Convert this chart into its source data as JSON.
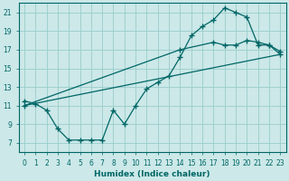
{
  "xlabel": "Humidex (Indice chaleur)",
  "bg_color": "#cce8e8",
  "grid_color": "#99cccc",
  "line_color": "#006666",
  "xlim": [
    -0.5,
    23.5
  ],
  "ylim": [
    6.0,
    22.0
  ],
  "yticks": [
    7,
    9,
    11,
    13,
    15,
    17,
    19,
    21
  ],
  "xticks": [
    0,
    1,
    2,
    3,
    4,
    5,
    6,
    7,
    8,
    9,
    10,
    11,
    12,
    13,
    14,
    15,
    16,
    17,
    18,
    19,
    20,
    21,
    22,
    23
  ],
  "line1_x": [
    0,
    1,
    2,
    3,
    4,
    5,
    6,
    7,
    8,
    9,
    10,
    11,
    12,
    13,
    14,
    15,
    16,
    17,
    18,
    19,
    20,
    21,
    22,
    23
  ],
  "line1_y": [
    11.5,
    11.2,
    10.5,
    8.5,
    7.3,
    7.3,
    7.3,
    7.3,
    10.5,
    9.0,
    11.0,
    12.8,
    13.5,
    14.2,
    16.2,
    18.5,
    19.5,
    20.2,
    21.5,
    21.0,
    20.5,
    17.5,
    17.5,
    16.5
  ],
  "line2_x": [
    0,
    23
  ],
  "line2_y": [
    11.0,
    16.5
  ],
  "line3_x": [
    0,
    14,
    17,
    18,
    19,
    20,
    21,
    22,
    23
  ],
  "line3_y": [
    11.0,
    17.0,
    17.8,
    17.5,
    17.5,
    18.0,
    17.8,
    17.5,
    16.8
  ],
  "xlabel_fontsize": 6.5,
  "tick_fontsize_x": 5.0,
  "tick_fontsize_y": 6.0
}
